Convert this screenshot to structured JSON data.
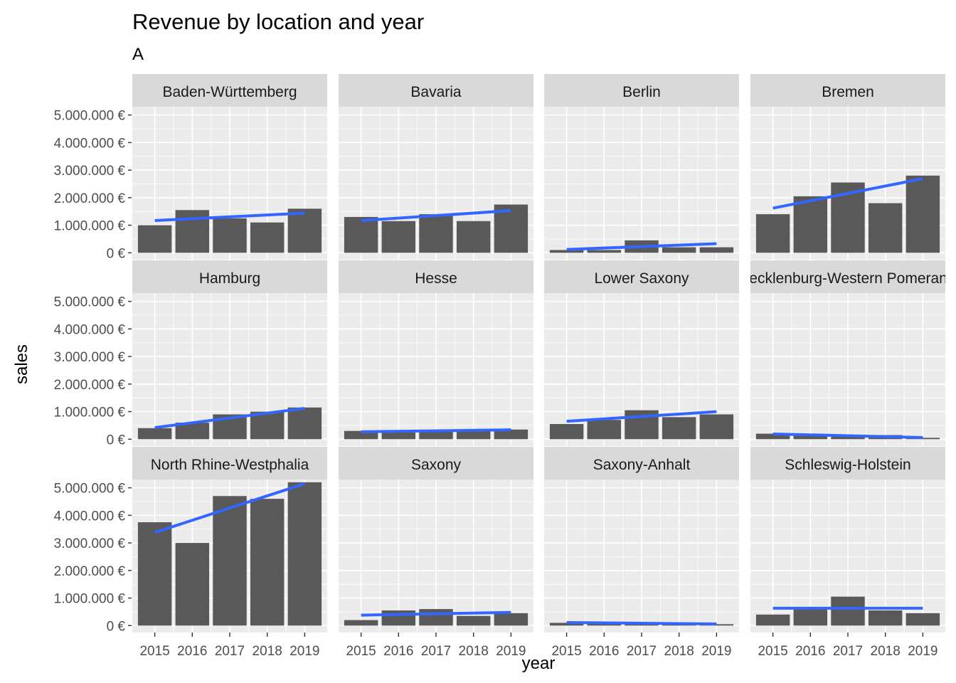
{
  "title": "Revenue by location and year",
  "subtitle": "A",
  "xlabel": "year",
  "ylabel": "sales",
  "colors": {
    "panel_bg": "#ebebeb",
    "strip_bg": "#d9d9d9",
    "grid": "#ffffff",
    "bar": "#595959",
    "trend": "#3366ff",
    "text": "#000000",
    "tick_text": "#4d4d4d"
  },
  "chart_data": {
    "type": "bar",
    "facet_rows": 3,
    "facet_cols": 4,
    "y_scales": "free per row",
    "x": [
      "2015",
      "2016",
      "2017",
      "2018",
      "2019"
    ],
    "y_tick_values": [
      0,
      1000000,
      2000000,
      3000000,
      4000000,
      5000000
    ],
    "y_tick_labels": [
      "0 €",
      "1.000.000 €",
      "2.000.000 €",
      "3.000.000 €",
      "4.000.000 €",
      "5.000.000 €"
    ],
    "row_ylim": [
      [
        -250000,
        5300000
      ],
      [
        -250000,
        5300000
      ],
      [
        -250000,
        5300000
      ]
    ],
    "grid": true,
    "trend_line": "linear fit per panel",
    "panels": [
      {
        "name": "Baden-Württemberg",
        "values": [
          1000000,
          1550000,
          1250000,
          1100000,
          1600000
        ],
        "trend": [
          1170000,
          1440000
        ]
      },
      {
        "name": "Bavaria",
        "values": [
          1300000,
          1150000,
          1400000,
          1150000,
          1750000
        ],
        "trend": [
          1170000,
          1530000
        ]
      },
      {
        "name": "Berlin",
        "values": [
          100000,
          100000,
          450000,
          200000,
          200000
        ],
        "trend": [
          120000,
          330000
        ]
      },
      {
        "name": "Bremen",
        "values": [
          1400000,
          2050000,
          2550000,
          1800000,
          2800000
        ],
        "trend": [
          1620000,
          2690000
        ]
      },
      {
        "name": "Hamburg",
        "values": [
          400000,
          600000,
          900000,
          1000000,
          1150000
        ],
        "trend": [
          420000,
          1120000
        ]
      },
      {
        "name": "Hesse",
        "values": [
          300000,
          250000,
          300000,
          300000,
          350000
        ],
        "trend": [
          270000,
          340000
        ]
      },
      {
        "name": "Lower Saxony",
        "values": [
          550000,
          700000,
          1050000,
          800000,
          900000
        ],
        "trend": [
          650000,
          1000000
        ]
      },
      {
        "name": "Mecklenburg-Western Pomerania",
        "values": [
          200000,
          150000,
          150000,
          150000,
          50000
        ],
        "trend": [
          190000,
          60000
        ]
      },
      {
        "name": "North Rhine-Westphalia",
        "values": [
          3750000,
          3000000,
          4700000,
          4600000,
          5200000
        ],
        "trend": [
          3380000,
          5150000
        ]
      },
      {
        "name": "Saxony",
        "values": [
          200000,
          550000,
          600000,
          350000,
          450000
        ],
        "trend": [
          380000,
          480000
        ]
      },
      {
        "name": "Saxony-Anhalt",
        "values": [
          100000,
          100000,
          100000,
          100000,
          50000
        ],
        "trend": [
          110000,
          60000
        ]
      },
      {
        "name": "Schleswig-Holstein",
        "values": [
          400000,
          600000,
          1050000,
          550000,
          450000
        ],
        "trend": [
          630000,
          630000
        ]
      }
    ]
  }
}
